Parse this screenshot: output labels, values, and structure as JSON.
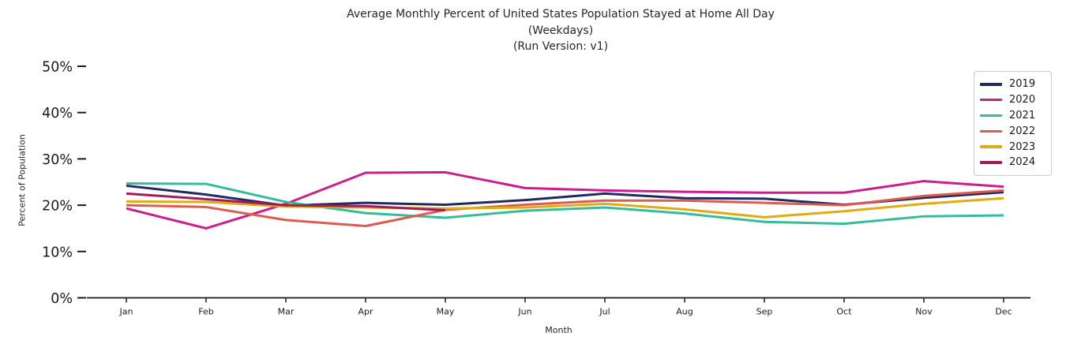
{
  "figure": {
    "title_line1": "Average Monthly Percent of United States Population Stayed at Home All Day",
    "title_line2": "(Weekdays)",
    "title_line3": "(Run Version: v1)"
  },
  "chart_data": {
    "type": "line",
    "title": "Average Monthly Percent of United States Population Stayed at Home All Day (Weekdays) (Run Version: v1)",
    "xlabel": "Month",
    "ylabel": "Percent of Population",
    "x": [
      "Jan",
      "Feb",
      "Mar",
      "Apr",
      "May",
      "Jun",
      "Jul",
      "Aug",
      "Sep",
      "Oct",
      "Nov",
      "Dec"
    ],
    "yticks": [
      0,
      10,
      20,
      30,
      40,
      50
    ],
    "ytick_suffix": "%",
    "ylim": [
      0,
      50
    ],
    "grid": false,
    "legend_position": "upper right",
    "series": [
      {
        "name": "2019",
        "color": "#232a5e",
        "values": [
          24.2,
          22.3,
          19.9,
          20.5,
          20.1,
          21.1,
          22.5,
          21.5,
          21.4,
          20.1,
          21.6,
          22.8
        ]
      },
      {
        "name": "2020",
        "color": "#ce1c8e",
        "values": [
          19.3,
          15.0,
          20.3,
          27.0,
          27.1,
          23.7,
          23.2,
          22.9,
          22.7,
          22.7,
          25.2,
          24.0
        ]
      },
      {
        "name": "2021",
        "color": "#35bd9b",
        "values": [
          24.7,
          24.6,
          20.7,
          18.3,
          17.3,
          18.8,
          19.5,
          18.2,
          16.4,
          16.0,
          17.6,
          17.8
        ]
      },
      {
        "name": "2022",
        "color": "#dd5c50",
        "values": [
          20.0,
          19.6,
          16.8,
          15.5,
          19.0,
          20.1,
          21.0,
          21.0,
          20.5,
          20.0,
          22.0,
          23.2
        ]
      },
      {
        "name": "2023",
        "color": "#dfab16",
        "values": [
          20.8,
          20.7,
          19.7,
          19.5,
          19.3,
          19.5,
          20.3,
          19.1,
          17.4,
          18.7,
          20.3,
          21.5
        ]
      },
      {
        "name": "2024",
        "color": "#a01d5c",
        "values": [
          22.5,
          21.3,
          20.0,
          19.8,
          18.9,
          null,
          null,
          null,
          null,
          null,
          null,
          null
        ]
      }
    ],
    "axis_color": "#1a1a1a",
    "line_width": 3
  }
}
